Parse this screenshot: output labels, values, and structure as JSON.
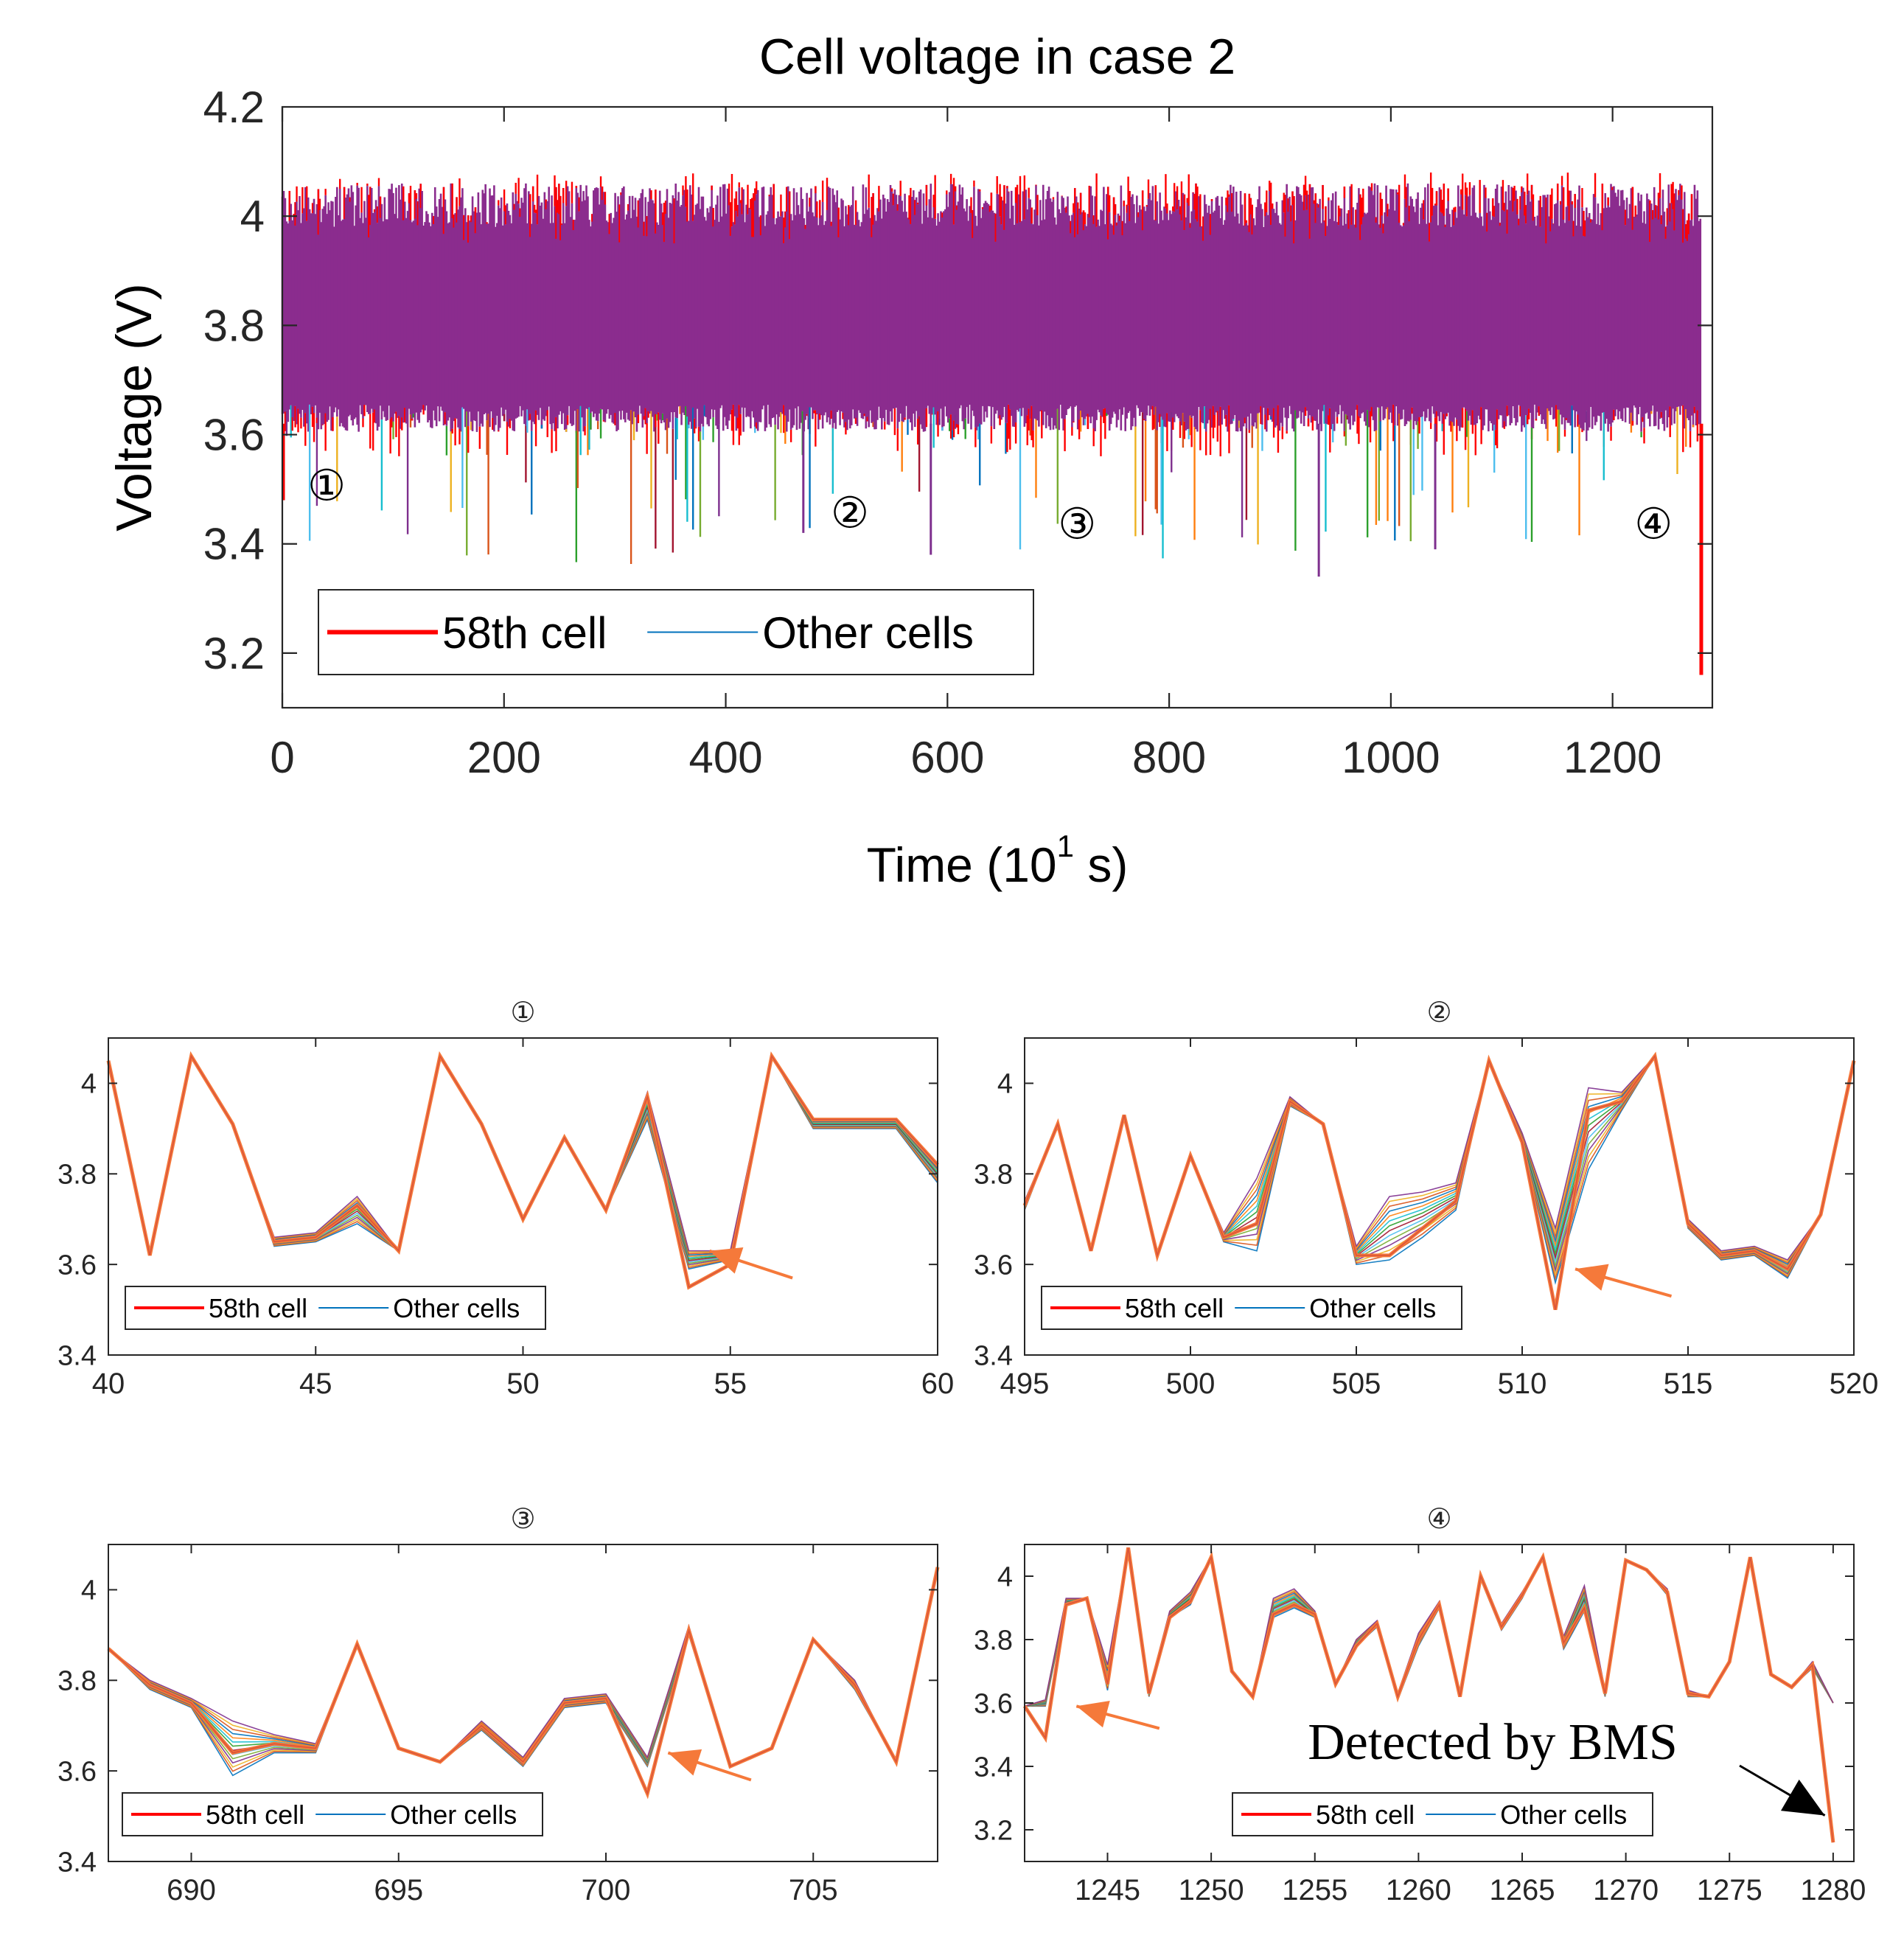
{
  "colors": {
    "cell58": "#ff0000",
    "others_legend": "#0072bd",
    "band": "#8b2c8e",
    "arrow": "#f5793a",
    "black_arrow": "#000000",
    "cell_palette": [
      "#0072bd",
      "#d95319",
      "#edb120",
      "#7e2f8e",
      "#77ac30",
      "#4dbeee",
      "#a2142f",
      "#2ca02c",
      "#17becf",
      "#ff7f0e"
    ]
  },
  "chart_data": [
    {
      "id": "main",
      "type": "line",
      "title": "Cell voltage in case 2",
      "xlabel": "Time (10",
      "xlabel_sup": "1",
      "xlabel_end": " s)",
      "ylabel": "Voltage (V)",
      "xlim": [
        0,
        1290
      ],
      "ylim": [
        3.1,
        4.2
      ],
      "xticks": [
        0,
        200,
        400,
        600,
        800,
        1000,
        1200
      ],
      "yticks": [
        3.2,
        3.4,
        3.6,
        3.8,
        4.0
      ],
      "ytick_labels": [
        "3.2",
        "3.4",
        "3.6",
        "3.8",
        "4",
        "4.2"
      ],
      "ytick_label_values": [
        3.2,
        3.4,
        3.6,
        3.8,
        4.0,
        4.2
      ],
      "legend": [
        "58th cell",
        "Other cells"
      ],
      "legend_position": "bottom-left",
      "envelope": {
        "typical_low": 3.63,
        "typical_high": 4.06,
        "min": 3.34,
        "max": 4.11
      },
      "final_drop": {
        "x": 1280,
        "y": 3.16
      },
      "markers": [
        {
          "label": "①",
          "x": 40,
          "y": 3.48
        },
        {
          "label": "②",
          "x": 512,
          "y": 3.43
        },
        {
          "label": "③",
          "x": 717,
          "y": 3.41
        },
        {
          "label": "④",
          "x": 1237,
          "y": 3.41
        }
      ]
    },
    {
      "id": "zoom1",
      "type": "line",
      "title": "①",
      "xlim": [
        40,
        60
      ],
      "ylim": [
        3.4,
        4.1
      ],
      "xticks": [
        40,
        45,
        50,
        55,
        60
      ],
      "yticks": [
        3.4,
        3.6,
        3.8,
        4.0
      ],
      "ytick_labels": [
        "3.4",
        "3.6",
        "3.8",
        "4"
      ],
      "legend": [
        "58th cell",
        "Other cells"
      ],
      "x": [
        40,
        41,
        42,
        43,
        44,
        45,
        46,
        47,
        48,
        49,
        50,
        51,
        52,
        53,
        54,
        55,
        56,
        57,
        58,
        59,
        60
      ],
      "others": [
        4.05,
        3.62,
        4.06,
        3.91,
        3.65,
        3.66,
        3.72,
        3.63,
        4.06,
        3.91,
        3.7,
        3.88,
        3.72,
        3.95,
        3.61,
        3.62,
        4.06,
        3.91,
        3.91,
        3.91,
        3.8
      ],
      "spread": [
        0.0,
        0.0,
        0.0,
        0.0,
        0.01,
        0.01,
        0.03,
        0.0,
        0.0,
        0.0,
        0.0,
        0.0,
        0.0,
        0.03,
        0.02,
        0.01,
        0.0,
        0.01,
        0.01,
        0.01,
        0.02
      ],
      "cell58": [
        4.05,
        3.62,
        4.06,
        3.91,
        3.65,
        3.66,
        3.73,
        3.63,
        4.06,
        3.91,
        3.7,
        3.88,
        3.72,
        3.97,
        3.55,
        3.6,
        4.06,
        3.92,
        3.92,
        3.92,
        3.82
      ],
      "arrow": {
        "x_from": 56.5,
        "y_from": 3.57,
        "x_to": 54.5,
        "y_to": 3.63
      }
    },
    {
      "id": "zoom2",
      "type": "line",
      "title": "②",
      "xlim": [
        495,
        520
      ],
      "ylim": [
        3.4,
        4.1
      ],
      "xticks": [
        495,
        500,
        505,
        510,
        515,
        520
      ],
      "yticks": [
        3.4,
        3.6,
        3.8,
        4.0
      ],
      "ytick_labels": [
        "3.4",
        "3.6",
        "3.8",
        "4"
      ],
      "legend": [
        "58th cell",
        "Other cells"
      ],
      "x": [
        495,
        496,
        497,
        498,
        499,
        500,
        501,
        502,
        503,
        504,
        505,
        506,
        507,
        508,
        509,
        510,
        511,
        512,
        513,
        514,
        515,
        516,
        517,
        518,
        519,
        520
      ],
      "others": [
        3.73,
        3.91,
        3.63,
        3.93,
        3.62,
        3.84,
        3.66,
        3.71,
        3.96,
        3.91,
        3.62,
        3.68,
        3.71,
        3.75,
        4.05,
        3.88,
        3.62,
        3.9,
        3.96,
        4.06,
        3.69,
        3.62,
        3.63,
        3.59,
        3.71,
        4.05
      ],
      "spread": [
        0.01,
        0.0,
        0.0,
        0.0,
        0.0,
        0.0,
        0.01,
        0.08,
        0.01,
        0.0,
        0.02,
        0.07,
        0.05,
        0.03,
        0.0,
        0.01,
        0.06,
        0.09,
        0.02,
        0.0,
        0.01,
        0.01,
        0.01,
        0.02,
        0.0,
        0.0
      ],
      "cell58": [
        3.73,
        3.91,
        3.63,
        3.93,
        3.62,
        3.84,
        3.66,
        3.69,
        3.96,
        3.91,
        3.62,
        3.62,
        3.68,
        3.74,
        4.05,
        3.87,
        3.5,
        3.94,
        3.96,
        4.06,
        3.69,
        3.62,
        3.63,
        3.59,
        3.71,
        4.05
      ],
      "arrow": {
        "x_from": 514.5,
        "y_from": 3.53,
        "x_to": 511.6,
        "y_to": 3.59
      }
    },
    {
      "id": "zoom3",
      "type": "line",
      "title": "③",
      "xlim": [
        688,
        708
      ],
      "ylim": [
        3.4,
        4.1
      ],
      "xticks": [
        690,
        695,
        700,
        705
      ],
      "yticks": [
        3.4,
        3.6,
        3.8,
        4.0
      ],
      "ytick_labels": [
        "3.4",
        "3.6",
        "3.8",
        "4"
      ],
      "legend": [
        "58th cell",
        "Other cells"
      ],
      "x": [
        688,
        689,
        690,
        691,
        692,
        693,
        694,
        695,
        696,
        697,
        698,
        699,
        700,
        701,
        702,
        703,
        704,
        705,
        706,
        707,
        708
      ],
      "others": [
        3.87,
        3.79,
        3.75,
        3.65,
        3.66,
        3.65,
        3.88,
        3.65,
        3.62,
        3.7,
        3.62,
        3.75,
        3.76,
        3.62,
        3.91,
        3.61,
        3.65,
        3.89,
        3.79,
        3.62,
        4.05
      ],
      "spread": [
        0.0,
        0.01,
        0.01,
        0.06,
        0.02,
        0.01,
        0.0,
        0.0,
        0.0,
        0.01,
        0.01,
        0.01,
        0.01,
        0.01,
        0.01,
        0.0,
        0.0,
        0.0,
        0.01,
        0.0,
        0.0
      ],
      "cell58": [
        3.87,
        3.79,
        3.75,
        3.64,
        3.66,
        3.65,
        3.88,
        3.65,
        3.62,
        3.7,
        3.62,
        3.75,
        3.76,
        3.55,
        3.91,
        3.61,
        3.65,
        3.89,
        3.79,
        3.62,
        4.05
      ],
      "arrow": {
        "x_from": 703.5,
        "y_from": 3.58,
        "x_to": 701.5,
        "y_to": 3.64
      }
    },
    {
      "id": "zoom4",
      "type": "line",
      "title": "④",
      "xlim": [
        1241,
        1281
      ],
      "ylim": [
        3.1,
        4.1
      ],
      "xticks": [
        1245,
        1250,
        1255,
        1260,
        1265,
        1270,
        1275,
        1280
      ],
      "yticks": [
        3.2,
        3.4,
        3.6,
        3.8,
        4.0
      ],
      "ytick_labels": [
        "3.2",
        "3.4",
        "3.6",
        "3.8",
        "4"
      ],
      "legend": [
        "58th cell",
        "Other cells"
      ],
      "x": [
        1241,
        1242,
        1243,
        1244,
        1245,
        1246,
        1247,
        1248,
        1249,
        1250,
        1251,
        1252,
        1253,
        1254,
        1255,
        1256,
        1257,
        1258,
        1259,
        1260,
        1261,
        1262,
        1263,
        1264,
        1265,
        1266,
        1267,
        1268,
        1269,
        1270,
        1271,
        1272,
        1273,
        1274,
        1275,
        1276,
        1277,
        1278,
        1279,
        1280
      ],
      "others": [
        3.59,
        3.6,
        3.92,
        3.93,
        3.68,
        4.08,
        3.63,
        3.88,
        3.93,
        4.06,
        3.7,
        3.62,
        3.9,
        3.93,
        3.88,
        3.66,
        3.79,
        3.85,
        3.62,
        3.8,
        3.91,
        3.62,
        4.0,
        3.84,
        3.94,
        4.06,
        3.79,
        3.93,
        3.63,
        4.05,
        4.02,
        3.95,
        3.63,
        3.62,
        3.73,
        4.06,
        3.69,
        3.65,
        3.72,
        3.6
      ],
      "spread": [
        0.0,
        0.01,
        0.01,
        0.0,
        0.04,
        0.01,
        0.01,
        0.01,
        0.02,
        0.0,
        0.0,
        0.0,
        0.03,
        0.03,
        0.01,
        0.0,
        0.01,
        0.01,
        0.01,
        0.02,
        0.01,
        0.0,
        0.01,
        0.01,
        0.01,
        0.0,
        0.02,
        0.04,
        0.01,
        0.0,
        0.0,
        0.01,
        0.01,
        0.0,
        0.0,
        0.0,
        0.0,
        0.0,
        0.01,
        0.0
      ],
      "cell58": [
        3.59,
        3.49,
        3.91,
        3.93,
        3.66,
        4.09,
        3.63,
        3.87,
        3.92,
        4.06,
        3.7,
        3.62,
        3.88,
        3.91,
        3.88,
        3.66,
        3.78,
        3.85,
        3.62,
        3.8,
        3.91,
        3.62,
        4.0,
        3.84,
        3.94,
        4.06,
        3.79,
        3.9,
        3.63,
        4.05,
        4.02,
        3.95,
        3.63,
        3.62,
        3.73,
        4.06,
        3.69,
        3.65,
        3.72,
        3.16
      ],
      "arrow": {
        "x_from": 1247.5,
        "y_from": 3.52,
        "x_to": 1243.5,
        "y_to": 3.59
      },
      "annotation": {
        "text": "Detected by BMS",
        "arrow_to_x": 1279.6,
        "arrow_to_y": 3.18
      }
    }
  ]
}
